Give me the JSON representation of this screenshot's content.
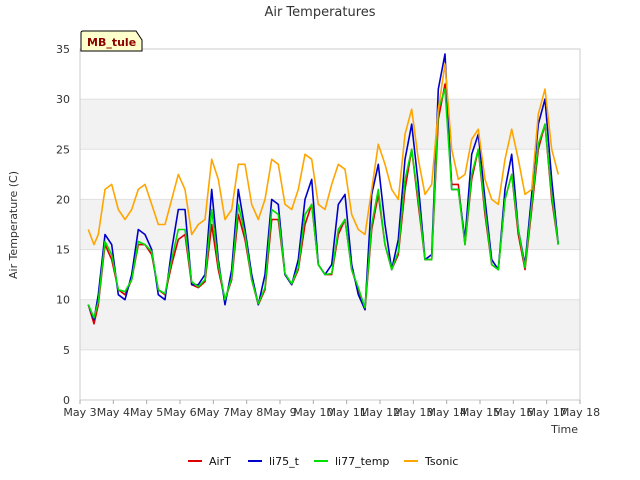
{
  "chart_data": {
    "type": "line",
    "title": "Air Temperatures",
    "xlabel": "Time",
    "ylabel": "Air Temperature (C)",
    "badge": "MB_tule",
    "ylim": [
      0,
      35
    ],
    "yticks": [
      0,
      5,
      10,
      15,
      20,
      25,
      30,
      35
    ],
    "xlim": [
      3,
      18
    ],
    "xticks": [
      {
        "x": 3,
        "label": "May 3"
      },
      {
        "x": 4,
        "label": "May 4"
      },
      {
        "x": 5,
        "label": "May 5"
      },
      {
        "x": 6,
        "label": "May 6"
      },
      {
        "x": 7,
        "label": "May 7"
      },
      {
        "x": 8,
        "label": "May 8"
      },
      {
        "x": 9,
        "label": "May 9"
      },
      {
        "x": 10,
        "label": "May 10"
      },
      {
        "x": 11,
        "label": "May 11"
      },
      {
        "x": 12,
        "label": "May 12"
      },
      {
        "x": 13,
        "label": "May 13"
      },
      {
        "x": 14,
        "label": "May 14"
      },
      {
        "x": 15,
        "label": "May 15"
      },
      {
        "x": 16,
        "label": "May 16"
      },
      {
        "x": 17,
        "label": "May 17"
      },
      {
        "x": 18,
        "label": "May 18"
      }
    ],
    "grid": "horizontal bands",
    "legend_position": "bottom-center",
    "series": [
      {
        "name": "AirT",
        "color": "#dd0000",
        "x": [
          3.25,
          3.42,
          3.55,
          3.75,
          3.95,
          4.15,
          4.35,
          4.55,
          4.75,
          4.95,
          5.15,
          5.35,
          5.55,
          5.75,
          5.95,
          6.15,
          6.35,
          6.55,
          6.75,
          6.95,
          7.15,
          7.35,
          7.55,
          7.75,
          7.95,
          8.15,
          8.35,
          8.55,
          8.75,
          8.95,
          9.15,
          9.35,
          9.55,
          9.75,
          9.95,
          10.15,
          10.35,
          10.55,
          10.75,
          10.95,
          11.15,
          11.35,
          11.55,
          11.75,
          11.95,
          12.15,
          12.35,
          12.55,
          12.75,
          12.95,
          13.15,
          13.35,
          13.55,
          13.75,
          13.95,
          14.15,
          14.35,
          14.55,
          14.75,
          14.95,
          15.15,
          15.35,
          15.55,
          15.75,
          15.95,
          16.15,
          16.35,
          16.55,
          16.75,
          16.95,
          17.15,
          17.35
        ],
        "y": [
          9.5,
          7.6,
          9.5,
          15.5,
          14.0,
          11.0,
          10.5,
          12.0,
          15.5,
          15.5,
          14.5,
          11.0,
          10.5,
          13.5,
          16.0,
          16.5,
          11.5,
          11.2,
          11.8,
          17.5,
          13.0,
          10.0,
          12.0,
          18.5,
          16.0,
          12.0,
          9.5,
          11.0,
          18.0,
          18.0,
          12.5,
          11.5,
          13.0,
          17.5,
          19.5,
          13.5,
          12.5,
          12.5,
          16.5,
          18.0,
          13.0,
          11.0,
          9.0,
          17.0,
          20.5,
          15.5,
          13.0,
          14.5,
          21.0,
          25.0,
          19.5,
          14.0,
          14.0,
          28.0,
          31.5,
          21.5,
          21.5,
          15.5,
          22.0,
          25.0,
          18.5,
          13.5,
          13.0,
          20.0,
          22.5,
          16.5,
          13.0,
          19.0,
          25.0,
          27.5,
          20.0,
          15.5
        ]
      },
      {
        "name": "li75_t",
        "color": "#0000cc",
        "x": [
          3.25,
          3.42,
          3.55,
          3.75,
          3.95,
          4.15,
          4.35,
          4.55,
          4.75,
          4.95,
          5.15,
          5.35,
          5.55,
          5.75,
          5.95,
          6.15,
          6.35,
          6.55,
          6.75,
          6.95,
          7.15,
          7.35,
          7.55,
          7.75,
          7.95,
          8.15,
          8.35,
          8.55,
          8.75,
          8.95,
          9.15,
          9.35,
          9.55,
          9.75,
          9.95,
          10.15,
          10.35,
          10.55,
          10.75,
          10.95,
          11.15,
          11.35,
          11.55,
          11.75,
          11.95,
          12.15,
          12.35,
          12.55,
          12.75,
          12.95,
          13.15,
          13.35,
          13.55,
          13.75,
          13.95,
          14.15,
          14.35,
          14.55,
          14.75,
          14.95,
          15.15,
          15.35,
          15.55,
          15.75,
          15.95,
          16.15,
          16.35,
          16.55,
          16.75,
          16.95,
          17.15,
          17.35
        ],
        "y": [
          9.5,
          8.0,
          10.5,
          16.5,
          15.5,
          10.5,
          10.0,
          12.5,
          17.0,
          16.5,
          15.0,
          10.5,
          10.0,
          15.0,
          19.0,
          19.0,
          11.5,
          11.5,
          12.5,
          21.0,
          14.0,
          9.5,
          13.0,
          21.0,
          17.0,
          12.5,
          9.5,
          12.5,
          20.0,
          19.5,
          12.5,
          11.5,
          14.0,
          20.0,
          22.0,
          13.5,
          12.5,
          13.5,
          19.5,
          20.5,
          13.5,
          10.5,
          9.0,
          20.5,
          23.5,
          17.5,
          13.0,
          16.0,
          24.0,
          27.5,
          21.5,
          14.0,
          14.5,
          31.0,
          34.5,
          21.0,
          21.0,
          16.0,
          24.5,
          26.5,
          20.0,
          14.0,
          13.0,
          21.0,
          24.5,
          17.0,
          13.5,
          20.5,
          27.5,
          30.0,
          22.0,
          15.5
        ]
      },
      {
        "name": "li77_temp",
        "color": "#00e000",
        "x": [
          3.25,
          3.42,
          3.55,
          3.75,
          3.95,
          4.15,
          4.35,
          4.55,
          4.75,
          4.95,
          5.15,
          5.35,
          5.55,
          5.75,
          5.95,
          6.15,
          6.35,
          6.55,
          6.75,
          6.95,
          7.15,
          7.35,
          7.55,
          7.75,
          7.95,
          8.15,
          8.35,
          8.55,
          8.75,
          8.95,
          9.15,
          9.35,
          9.55,
          9.75,
          9.95,
          10.15,
          10.35,
          10.55,
          10.75,
          10.95,
          11.15,
          11.35,
          11.55,
          11.75,
          11.95,
          12.15,
          12.35,
          12.55,
          12.75,
          12.95,
          13.15,
          13.35,
          13.55,
          13.75,
          13.95,
          14.15,
          14.35,
          14.55,
          14.75,
          14.95,
          15.15,
          15.35,
          15.55,
          15.75,
          15.95,
          16.15,
          16.35,
          16.55,
          16.75,
          16.95,
          17.15,
          17.35
        ],
        "y": [
          9.5,
          8.2,
          9.8,
          15.8,
          14.5,
          11.0,
          10.8,
          12.0,
          15.8,
          15.5,
          14.8,
          11.0,
          10.6,
          14.0,
          17.0,
          17.0,
          11.8,
          11.3,
          12.0,
          19.0,
          13.5,
          10.0,
          12.2,
          19.5,
          16.5,
          12.0,
          9.6,
          11.2,
          19.0,
          18.5,
          12.6,
          11.6,
          13.2,
          18.5,
          19.5,
          13.5,
          12.5,
          12.6,
          17.0,
          18.0,
          13.0,
          11.2,
          9.2,
          17.5,
          21.0,
          15.5,
          13.0,
          14.8,
          22.0,
          25.0,
          20.0,
          14.0,
          14.0,
          29.0,
          31.0,
          21.0,
          21.0,
          15.5,
          22.5,
          25.0,
          19.0,
          13.5,
          13.0,
          20.0,
          22.5,
          17.0,
          13.2,
          19.5,
          25.5,
          27.5,
          20.5,
          15.5
        ]
      },
      {
        "name": "Tsonic",
        "color": "#ffa500",
        "x": [
          3.25,
          3.42,
          3.55,
          3.75,
          3.95,
          4.15,
          4.35,
          4.55,
          4.75,
          4.95,
          5.15,
          5.35,
          5.55,
          5.75,
          5.95,
          6.15,
          6.35,
          6.55,
          6.75,
          6.95,
          7.15,
          7.35,
          7.55,
          7.75,
          7.95,
          8.15,
          8.35,
          8.55,
          8.75,
          8.95,
          9.15,
          9.35,
          9.55,
          9.75,
          9.95,
          10.15,
          10.35,
          10.55,
          10.75,
          10.95,
          11.15,
          11.35,
          11.55,
          11.75,
          11.95,
          12.15,
          12.35,
          12.55,
          12.75,
          12.95,
          13.15,
          13.35,
          13.55,
          13.75,
          13.95,
          14.15,
          14.35,
          14.55,
          14.75,
          14.95,
          15.15,
          15.35,
          15.55,
          15.75,
          15.95,
          16.15,
          16.35,
          16.55,
          16.75,
          16.95,
          17.15,
          17.35
        ],
        "y": [
          17.0,
          15.5,
          16.5,
          21.0,
          21.5,
          19.0,
          18.0,
          19.0,
          21.0,
          21.5,
          19.5,
          17.5,
          17.5,
          20.0,
          22.5,
          21.0,
          16.5,
          17.5,
          18.0,
          24.0,
          22.0,
          18.0,
          19.0,
          23.5,
          23.5,
          19.5,
          18.0,
          20.0,
          24.0,
          23.5,
          19.5,
          19.0,
          21.0,
          24.5,
          24.0,
          19.5,
          19.0,
          21.5,
          23.5,
          23.0,
          18.5,
          17.0,
          16.5,
          21.0,
          25.5,
          23.5,
          21.0,
          20.0,
          26.5,
          29.0,
          24.0,
          20.5,
          21.5,
          29.0,
          33.5,
          25.0,
          22.0,
          22.5,
          26.0,
          27.0,
          22.0,
          20.0,
          19.5,
          24.0,
          27.0,
          24.0,
          20.5,
          21.0,
          28.5,
          31.0,
          25.0,
          22.5
        ]
      }
    ]
  }
}
